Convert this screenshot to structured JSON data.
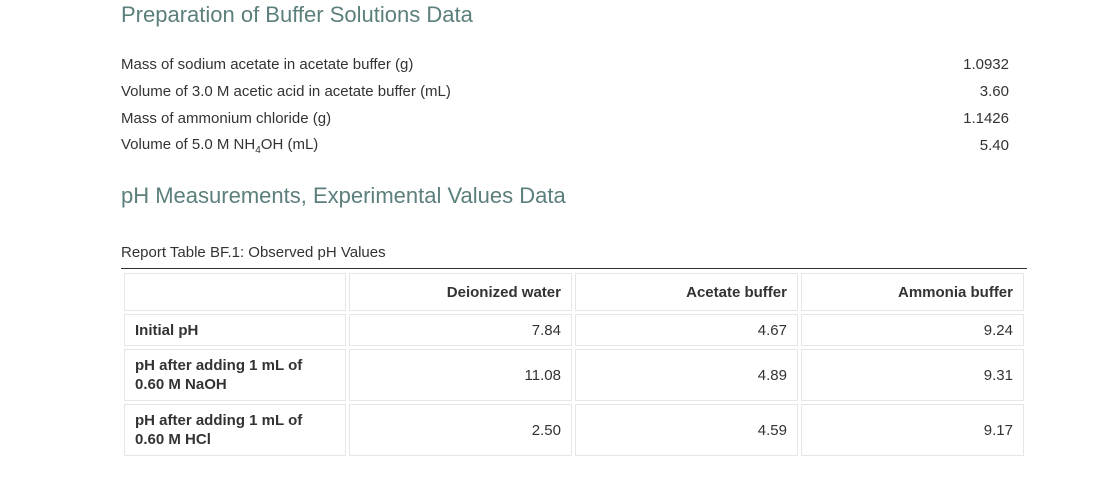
{
  "prep": {
    "heading": "Preparation of Buffer Solutions Data",
    "rows": [
      {
        "label": "Mass of sodium acetate in acetate buffer (g)",
        "value": "1.0932"
      },
      {
        "label": "Volume of 3.0 M acetic acid in acetate buffer (mL)",
        "value": "3.60"
      },
      {
        "label": "Mass of ammonium chloride (g)",
        "value": "1.1426"
      },
      {
        "label_prefix": "Volume of 5.0 M NH",
        "label_sub": "4",
        "label_suffix": "OH (mL)",
        "value": "5.40"
      }
    ]
  },
  "ph": {
    "heading": "pH Measurements, Experimental Values Data",
    "caption": "Report Table BF.1: Observed pH Values",
    "columns": [
      "",
      "Deionized water",
      "Acetate buffer",
      "Ammonia buffer"
    ],
    "rows": [
      {
        "label": "Initial pH",
        "values": [
          "7.84",
          "4.67",
          "9.24"
        ]
      },
      {
        "label_line1": "pH after adding 1 mL of",
        "label_line2": "0.60 M NaOH",
        "values": [
          "11.08",
          "4.89",
          "9.31"
        ]
      },
      {
        "label_line1": "pH after adding 1 mL of",
        "label_line2": "0.60 M HCl",
        "values": [
          "2.50",
          "4.59",
          "9.17"
        ]
      }
    ]
  }
}
